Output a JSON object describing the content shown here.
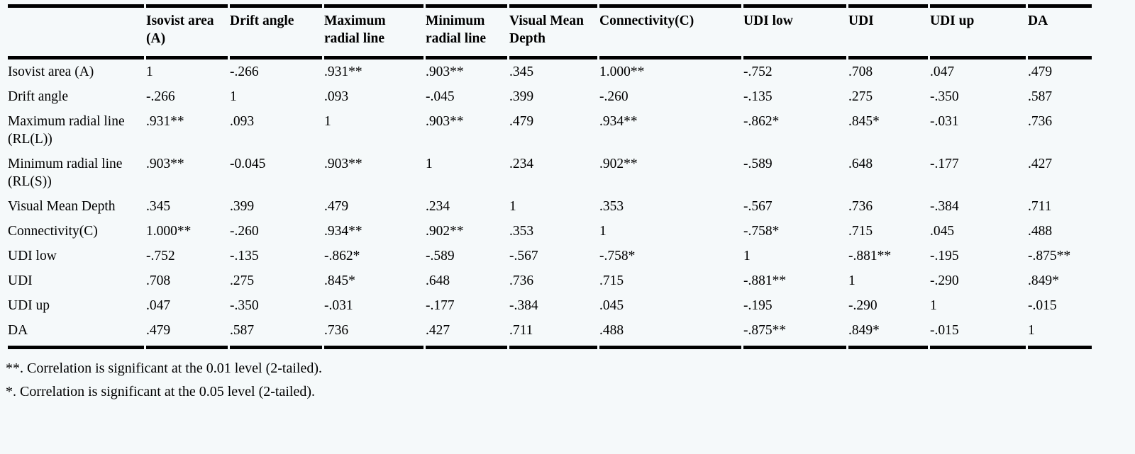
{
  "table": {
    "columns": [
      "",
      "Isovist area (A)",
      "Drift angle",
      "Maximum radial line",
      "Minimum radial line",
      "Visual Mean Depth",
      "Connectivity(C)",
      "UDI low",
      "UDI",
      "UDI up",
      "DA"
    ],
    "rows": [
      {
        "label": "Isovist area (A)",
        "values": [
          "1",
          "-.266",
          ".931**",
          ".903**",
          ".345",
          "1.000**",
          "-.752",
          ".708",
          ".047",
          ".479"
        ]
      },
      {
        "label": "Drift angle",
        "values": [
          "-.266",
          "1",
          ".093",
          "-.045",
          ".399",
          "-.260",
          "-.135",
          ".275",
          "-.350",
          ".587"
        ]
      },
      {
        "label": "Maximum radial line (RL(L))",
        "values": [
          ".931**",
          ".093",
          "1",
          ".903**",
          ".479",
          ".934**",
          "-.862*",
          ".845*",
          "-.031",
          ".736"
        ]
      },
      {
        "label": "Minimum radial line (RL(S))",
        "values": [
          ".903**",
          "-0.045",
          ".903**",
          "1",
          ".234",
          ".902**",
          "-.589",
          ".648",
          "-.177",
          ".427"
        ]
      },
      {
        "label": "Visual Mean Depth",
        "values": [
          ".345",
          ".399",
          ".479",
          ".234",
          "1",
          ".353",
          "-.567",
          ".736",
          "-.384",
          ".711"
        ]
      },
      {
        "label": "Connectivity(C)",
        "values": [
          "1.000**",
          "-.260",
          ".934**",
          ".902**",
          ".353",
          "1",
          "-.758*",
          ".715",
          ".045",
          ".488"
        ]
      },
      {
        "label": "UDI low",
        "values": [
          "-.752",
          "-.135",
          "-.862*",
          "-.589",
          "-.567",
          "-.758*",
          "1",
          "-.881**",
          "-.195",
          "-.875**"
        ]
      },
      {
        "label": "UDI",
        "values": [
          ".708",
          ".275",
          ".845*",
          ".648",
          ".736",
          ".715",
          "-.881**",
          "1",
          "-.290",
          ".849*"
        ]
      },
      {
        "label": "UDI up",
        "values": [
          ".047",
          "-.350",
          "-.031",
          "-.177",
          "-.384",
          ".045",
          "-.195",
          "-.290",
          "1",
          "-.015"
        ]
      },
      {
        "label": "DA",
        "values": [
          ".479",
          ".587",
          ".736",
          ".427",
          ".711",
          ".488",
          "-.875**",
          ".849*",
          "-.015",
          "1"
        ]
      }
    ]
  },
  "footnotes": [
    "**. Correlation is significant at the 0.01 level (2-tailed).",
    "*. Correlation is significant at the 0.05 level (2-tailed)."
  ],
  "colors": {
    "background": "#f5f9fa",
    "text": "#000000",
    "rule": "#000000"
  }
}
